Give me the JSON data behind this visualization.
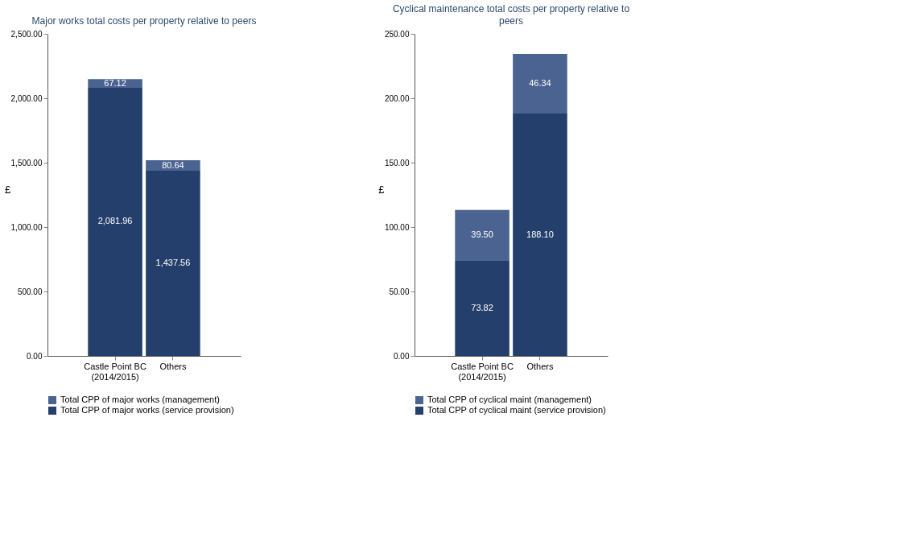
{
  "chart_data": [
    {
      "type": "bar",
      "title": "Major works total costs per property relative to peers",
      "ylabel": "£",
      "categories": [
        "Castle Point BC (2014/2015)",
        "Others"
      ],
      "stacked": true,
      "legend": "bottom",
      "grid": false,
      "series": [
        {
          "name": "Total CPP of major works (service provision)",
          "color": "#243f6b",
          "values": [
            2081.96,
            1437.56
          ],
          "value_labels": [
            "2,081.96",
            "1,437.56"
          ]
        },
        {
          "name": "Total CPP of major works (management)",
          "color": "#4a6391",
          "values": [
            67.12,
            80.64
          ],
          "value_labels": [
            "67.12",
            "80.64"
          ]
        }
      ],
      "ylim": [
        0,
        2500
      ],
      "yticks": [
        {
          "value": 0,
          "label": "0.00"
        },
        {
          "value": 500,
          "label": "500.00"
        },
        {
          "value": 1000,
          "label": "1,000.00"
        },
        {
          "value": 1500,
          "label": "1,500.00"
        },
        {
          "value": 2000,
          "label": "2,000.00"
        },
        {
          "value": 2500,
          "label": "2,500.00"
        }
      ]
    },
    {
      "type": "bar",
      "title": "Cyclical maintenance total costs per property relative to peers",
      "ylabel": "£",
      "categories": [
        "Castle Point BC (2014/2015)",
        "Others"
      ],
      "stacked": true,
      "legend": "bottom",
      "grid": false,
      "series": [
        {
          "name": "Total CPP of cyclical maint (service provision)",
          "color": "#243f6b",
          "values": [
            73.82,
            188.1
          ],
          "value_labels": [
            "73.82",
            "188.10"
          ]
        },
        {
          "name": "Total CPP of cyclical maint (management)",
          "color": "#4a6391",
          "values": [
            39.5,
            46.34
          ],
          "value_labels": [
            "39.50",
            "46.34"
          ]
        }
      ],
      "ylim": [
        0,
        250
      ],
      "yticks": [
        {
          "value": 0,
          "label": "0.00"
        },
        {
          "value": 50,
          "label": "50.00"
        },
        {
          "value": 100,
          "label": "100.00"
        },
        {
          "value": 150,
          "label": "150.00"
        },
        {
          "value": 200,
          "label": "200.00"
        },
        {
          "value": 250,
          "label": "250.00"
        }
      ]
    }
  ]
}
